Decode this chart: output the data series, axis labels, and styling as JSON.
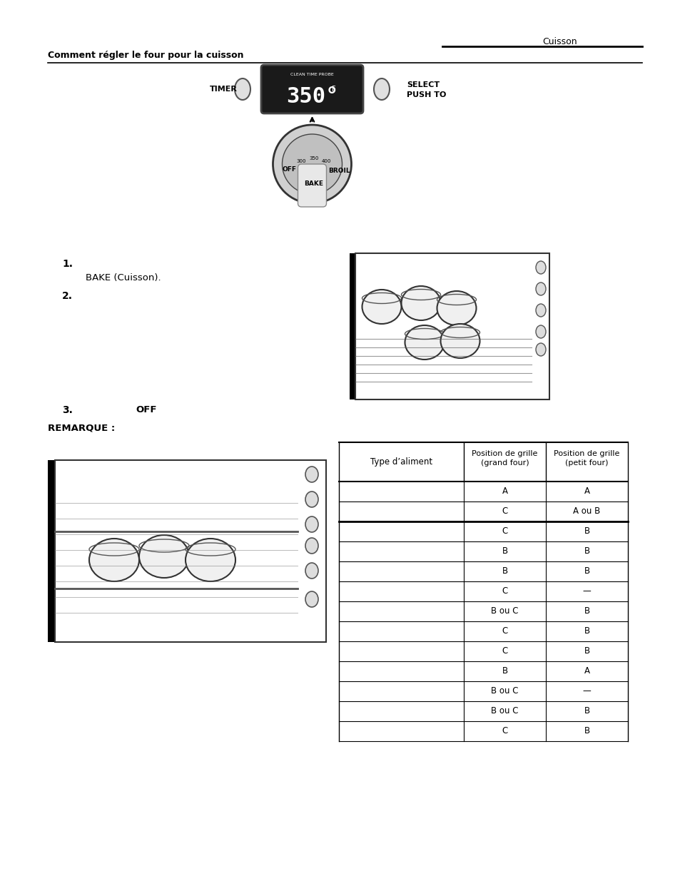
{
  "page_title_line": "Cuisson",
  "title_line2": "Comment régler le four pour la cuisson",
  "header_line": true,
  "numbered_items": [
    {
      "num": "1.",
      "indent_text": "BAKE (Cuisson)."
    },
    {
      "num": "2.",
      "indent_text": ""
    },
    {
      "num": "3.",
      "indent_text": "OFF"
    }
  ],
  "remarque_label": "REMARQUE :",
  "table_headers": [
    "Type d’aliment",
    "Position de grille\n(grand four)",
    "Position de grille\n(petit four)"
  ],
  "table_rows": [
    [
      "",
      "A",
      "A"
    ],
    [
      "",
      "C",
      "A ou B"
    ],
    [
      "",
      "C",
      "B"
    ],
    [
      "",
      "B",
      "B"
    ],
    [
      "",
      "B",
      "B"
    ],
    [
      "",
      "C",
      "—"
    ],
    [
      "",
      "B ou C",
      "B"
    ],
    [
      "",
      "C",
      "B"
    ],
    [
      "",
      "C",
      "B"
    ],
    [
      "",
      "B",
      "A"
    ],
    [
      "",
      "B ou C",
      "—"
    ],
    [
      "",
      "B ou C",
      "B"
    ],
    [
      "",
      "C",
      "B"
    ]
  ],
  "thick_border_after_row": 1,
  "background_color": "#ffffff",
  "text_color": "#000000",
  "table_line_color": "#000000"
}
